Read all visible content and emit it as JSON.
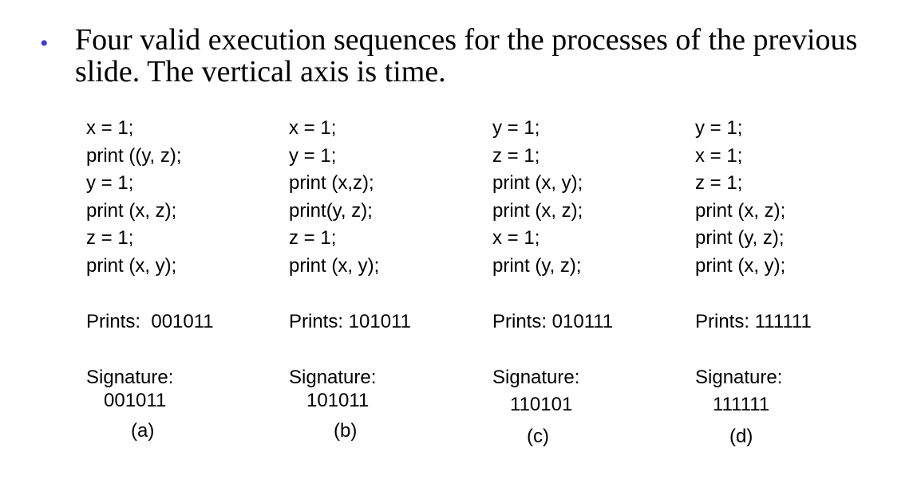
{
  "slide": {
    "bullet_glyph": "•",
    "bullet_color": "#3d3dd9",
    "bullet_text": "Four valid execution sequences for the processes of the previous slide.  The vertical axis is time."
  },
  "columns": [
    {
      "id": "a",
      "lines": [
        "x = 1;",
        "print ((y, z);",
        "y = 1;",
        "print (x, z);",
        "z = 1;",
        "print (x, y);"
      ],
      "prints": "Prints:  001011",
      "signature_label": "Signature:",
      "signature_value": "001011",
      "tag": "(a)"
    },
    {
      "id": "b",
      "lines": [
        "x = 1;",
        "y = 1;",
        "print (x,z);",
        "print(y, z);",
        "z = 1;",
        "print (x, y);"
      ],
      "prints": "Prints: 101011",
      "signature_label": "Signature:",
      "signature_value": "101011",
      "tag": "(b)"
    },
    {
      "id": "c",
      "lines": [
        "y = 1;",
        "z = 1;",
        "print (x, y);",
        "print (x, z);",
        "x = 1;",
        "print (y, z);"
      ],
      "prints": "Prints: 010111",
      "signature_label": "Signature:",
      "signature_value": "110101",
      "tag": "(c)"
    },
    {
      "id": "d",
      "lines": [
        "y = 1;",
        "x = 1;",
        "z = 1;",
        "print (x, z);",
        "print (y, z);",
        "print (x, y);"
      ],
      "prints": "Prints: 111111",
      "signature_label": "Signature:",
      "signature_value": "111111",
      "tag": "(d)"
    }
  ]
}
